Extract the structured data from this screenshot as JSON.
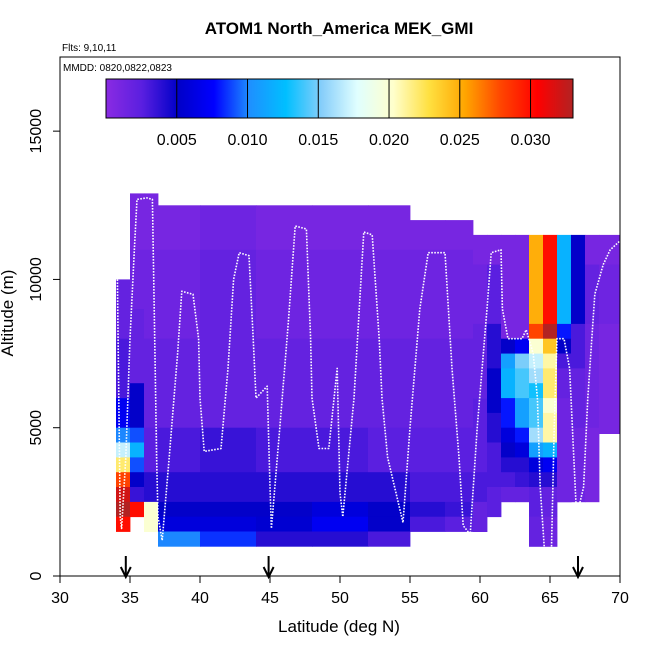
{
  "chart_data": {
    "type": "heatmap",
    "title": "ATOM1 North_America MEK_GMI",
    "flights_label": "Flts: 9,10,11",
    "dates_label": "MMDD: 0820,0822,0823",
    "xlabel": "Latitude (deg N)",
    "ylabel": "Altitude (m)",
    "xlim": [
      30,
      70
    ],
    "ylim": [
      0,
      17500
    ],
    "x_ticks": [
      "30",
      "35",
      "40",
      "45",
      "50",
      "55",
      "60",
      "65",
      "70"
    ],
    "y_ticks": [
      "0",
      "5000",
      "10000",
      "15000"
    ],
    "colorbar": {
      "min": 0.0,
      "max": 0.033,
      "tick_values": [
        0.005,
        0.01,
        0.015,
        0.02,
        0.025,
        0.03
      ],
      "tick_labels": [
        "0.005",
        "0.010",
        "0.015",
        "0.020",
        "0.025",
        "0.030"
      ],
      "colors": [
        "#8a2be2",
        "#5a1fe0",
        "#0000c8",
        "#0000ff",
        "#1e90ff",
        "#00bfff",
        "#87cefa",
        "#e0ffff",
        "#ffffcc",
        "#ffe040",
        "#ffa500",
        "#ff4500",
        "#ff0000",
        "#b22222"
      ]
    },
    "columns": [
      {
        "x0": 34.0,
        "x1": 35.0,
        "top": 10000,
        "bottom": 1500,
        "cells": [
          [
            8000,
            0.002
          ],
          [
            6000,
            0.003
          ],
          [
            5000,
            0.007
          ],
          [
            4500,
            0.01
          ],
          [
            4000,
            0.017
          ],
          [
            3500,
            0.022
          ],
          [
            3000,
            0.028
          ],
          [
            2500,
            0.032
          ],
          [
            2000,
            0.033
          ],
          [
            1500,
            0.03
          ]
        ]
      },
      {
        "x0": 35.0,
        "x1": 36.0,
        "top": 12900,
        "bottom": 1500,
        "cells": [
          [
            11000,
            0.001
          ],
          [
            9000,
            0.0015
          ],
          [
            6500,
            0.002
          ],
          [
            5000,
            0.005
          ],
          [
            4500,
            0.009
          ],
          [
            4000,
            0.012
          ],
          [
            3500,
            0.009
          ],
          [
            3000,
            0.005
          ],
          [
            2500,
            0.0035
          ],
          [
            2000,
            0.03
          ]
        ]
      },
      {
        "x0": 36.0,
        "x1": 37.0,
        "top": 12900,
        "bottom": 1500,
        "cells": [
          [
            11000,
            0.001
          ],
          [
            8000,
            0.0015
          ],
          [
            5000,
            0.002
          ],
          [
            3500,
            0.0025
          ],
          [
            2500,
            0.004
          ],
          [
            1500,
            0.02
          ]
        ]
      },
      {
        "x0": 37.0,
        "x1": 40.0,
        "top": 12500,
        "bottom": 1000,
        "cells": [
          [
            11000,
            0.001
          ],
          [
            8000,
            0.0015
          ],
          [
            5000,
            0.002
          ],
          [
            3500,
            0.003
          ],
          [
            2500,
            0.004
          ],
          [
            2000,
            0.005
          ],
          [
            1500,
            0.006
          ],
          [
            1000,
            0.01
          ]
        ]
      },
      {
        "x0": 40.0,
        "x1": 44.0,
        "top": 12500,
        "bottom": 1000,
        "cells": [
          [
            11000,
            0.0015
          ],
          [
            8000,
            0.002
          ],
          [
            5000,
            0.002
          ],
          [
            3500,
            0.0035
          ],
          [
            2500,
            0.004
          ],
          [
            2000,
            0.005
          ],
          [
            1500,
            0.006
          ],
          [
            1000,
            0.0085
          ]
        ]
      },
      {
        "x0": 44.0,
        "x1": 48.0,
        "top": 12500,
        "bottom": 1000,
        "cells": [
          [
            11000,
            0.001
          ],
          [
            8000,
            0.0015
          ],
          [
            5000,
            0.002
          ],
          [
            3500,
            0.003
          ],
          [
            2500,
            0.004
          ],
          [
            2000,
            0.005
          ],
          [
            1500,
            0.0055
          ],
          [
            1000,
            0.004
          ]
        ]
      },
      {
        "x0": 48.0,
        "x1": 52.0,
        "top": 12500,
        "bottom": 1000,
        "cells": [
          [
            11000,
            0.001
          ],
          [
            8000,
            0.0015
          ],
          [
            5000,
            0.002
          ],
          [
            3500,
            0.003
          ],
          [
            2500,
            0.004
          ],
          [
            2000,
            0.006
          ],
          [
            1500,
            0.007
          ],
          [
            1000,
            0.004
          ]
        ]
      },
      {
        "x0": 52.0,
        "x1": 55.0,
        "top": 12500,
        "bottom": 1000,
        "cells": [
          [
            11000,
            0.001
          ],
          [
            8000,
            0.0015
          ],
          [
            5000,
            0.002
          ],
          [
            3500,
            0.0025
          ],
          [
            2500,
            0.004
          ],
          [
            2000,
            0.005
          ],
          [
            1500,
            0.005
          ],
          [
            1000,
            0.003
          ]
        ]
      },
      {
        "x0": 55.0,
        "x1": 57.5,
        "top": 12000,
        "bottom": 1500,
        "cells": [
          [
            11000,
            0.001
          ],
          [
            8000,
            0.0015
          ],
          [
            5000,
            0.002
          ],
          [
            3500,
            0.0025
          ],
          [
            2500,
            0.003
          ],
          [
            2000,
            0.004
          ],
          [
            1500,
            0.003
          ]
        ]
      },
      {
        "x0": 57.5,
        "x1": 59.5,
        "top": 12000,
        "bottom": 1500,
        "cells": [
          [
            11000,
            0.001
          ],
          [
            8000,
            0.0015
          ],
          [
            5000,
            0.002
          ],
          [
            3500,
            0.0025
          ],
          [
            2500,
            0.003
          ],
          [
            2000,
            0.0035
          ],
          [
            1500,
            0.0025
          ]
        ]
      },
      {
        "x0": 59.5,
        "x1": 60.5,
        "top": 11500,
        "bottom": 1500,
        "cells": [
          [
            10500,
            0.001
          ],
          [
            8500,
            0.0015
          ],
          [
            6000,
            0.002
          ],
          [
            3500,
            0.0025
          ],
          [
            2500,
            0.003
          ],
          [
            1500,
            0.002
          ]
        ]
      },
      {
        "x0": 60.5,
        "x1": 61.5,
        "top": 11500,
        "bottom": 1500,
        "cells": [
          [
            10500,
            0.001
          ],
          [
            8500,
            0.0025
          ],
          [
            7000,
            0.004
          ],
          [
            5500,
            0.005
          ],
          [
            4500,
            0.004
          ],
          [
            3000,
            0.003
          ],
          [
            2000,
            0.0025
          ]
        ]
      },
      {
        "x0": 61.5,
        "x1": 62.5,
        "top": 11500,
        "bottom": 1500,
        "cells": [
          [
            8000,
            0.001
          ],
          [
            7500,
            0.005
          ],
          [
            7000,
            0.011
          ],
          [
            6000,
            0.012
          ],
          [
            5000,
            0.008
          ],
          [
            4500,
            0.006
          ],
          [
            4000,
            0.005
          ],
          [
            3500,
            0.004
          ],
          [
            3000,
            0.003
          ],
          [
            2500,
            0.002
          ]
        ]
      },
      {
        "x0": 62.5,
        "x1": 63.5,
        "top": 11500,
        "bottom": 1500,
        "cells": [
          [
            8000,
            0.001
          ],
          [
            7500,
            0.007
          ],
          [
            7000,
            0.015
          ],
          [
            6000,
            0.014
          ],
          [
            5000,
            0.011
          ],
          [
            4500,
            0.008
          ],
          [
            4000,
            0.006
          ],
          [
            3500,
            0.004
          ],
          [
            3000,
            0.0035
          ],
          [
            2500,
            0.002
          ]
        ]
      },
      {
        "x0": 63.5,
        "x1": 64.5,
        "top": 11500,
        "bottom": 500,
        "cells": [
          [
            8500,
            0.025
          ],
          [
            8000,
            0.028
          ],
          [
            7500,
            0.02
          ],
          [
            7000,
            0.017
          ],
          [
            6500,
            0.016
          ],
          [
            6000,
            0.013
          ],
          [
            5000,
            0.014
          ],
          [
            4500,
            0.016
          ],
          [
            4000,
            0.011
          ],
          [
            3500,
            0.006
          ],
          [
            3000,
            0.004
          ],
          [
            2000,
            0.0025
          ],
          [
            1000,
            0.002
          ]
        ]
      },
      {
        "x0": 64.5,
        "x1": 65.5,
        "top": 11500,
        "bottom": 500,
        "cells": [
          [
            8500,
            0.03
          ],
          [
            8000,
            0.033
          ],
          [
            7500,
            0.024
          ],
          [
            7000,
            0.021
          ],
          [
            6000,
            0.022
          ],
          [
            5500,
            0.02
          ],
          [
            4500,
            0.021
          ],
          [
            4000,
            0.012
          ],
          [
            3500,
            0.007
          ],
          [
            3000,
            0.004
          ],
          [
            2000,
            0.002
          ],
          [
            1000,
            0.0015
          ]
        ]
      },
      {
        "x0": 65.5,
        "x1": 66.5,
        "top": 11500,
        "bottom": 1500,
        "cells": [
          [
            8500,
            0.012
          ],
          [
            8000,
            0.008
          ],
          [
            7500,
            0.005
          ],
          [
            7000,
            0.003
          ],
          [
            6000,
            0.002
          ],
          [
            4000,
            0.0015
          ],
          [
            2500,
            0.0015
          ]
        ]
      },
      {
        "x0": 66.5,
        "x1": 67.5,
        "top": 11500,
        "bottom": 1500,
        "cells": [
          [
            8500,
            0.005
          ],
          [
            7000,
            0.003
          ],
          [
            5000,
            0.002
          ],
          [
            2500,
            0.0015
          ]
        ]
      },
      {
        "x0": 67.5,
        "x1": 68.5,
        "top": 11500,
        "bottom": 2500,
        "cells": [
          [
            10500,
            0.001
          ],
          [
            8500,
            0.002
          ],
          [
            5000,
            0.0015
          ],
          [
            2500,
            0.001
          ]
        ]
      },
      {
        "x0": 68.5,
        "x1": 70.0,
        "top": 11500,
        "bottom": 4800,
        "cells": [
          [
            10500,
            0.001
          ],
          [
            8500,
            0.0015
          ],
          [
            4800,
            0.001
          ]
        ]
      }
    ],
    "flight_track": [
      [
        34.1,
        10000
      ],
      [
        34.2,
        6000
      ],
      [
        34.3,
        2000
      ],
      [
        34.4,
        1600
      ],
      [
        34.7,
        4000
      ],
      [
        35.0,
        8000
      ],
      [
        35.3,
        10900
      ],
      [
        35.5,
        12700
      ],
      [
        36.2,
        12750
      ],
      [
        36.6,
        12700
      ],
      [
        36.8,
        7000
      ],
      [
        36.9,
        4000
      ],
      [
        37.0,
        2000
      ],
      [
        37.3,
        1200
      ],
      [
        37.8,
        4000
      ],
      [
        38.4,
        7500
      ],
      [
        38.7,
        9600
      ],
      [
        39.5,
        9500
      ],
      [
        39.9,
        8000
      ],
      [
        40.0,
        6000
      ],
      [
        40.3,
        4200
      ],
      [
        41.5,
        4300
      ],
      [
        42.0,
        7000
      ],
      [
        42.4,
        10000
      ],
      [
        42.8,
        10900
      ],
      [
        43.5,
        10800
      ],
      [
        43.8,
        8000
      ],
      [
        44.0,
        6000
      ],
      [
        44.8,
        6400
      ],
      [
        45.0,
        3000
      ],
      [
        45.1,
        1600
      ],
      [
        45.7,
        5000
      ],
      [
        46.3,
        8500
      ],
      [
        46.8,
        11800
      ],
      [
        47.6,
        11700
      ],
      [
        47.9,
        8000
      ],
      [
        48.0,
        6000
      ],
      [
        48.5,
        4300
      ],
      [
        49.2,
        4300
      ],
      [
        49.8,
        7000
      ],
      [
        50.0,
        2800
      ],
      [
        50.2,
        2000
      ],
      [
        51.0,
        6000
      ],
      [
        51.7,
        11600
      ],
      [
        52.3,
        11500
      ],
      [
        52.8,
        8000
      ],
      [
        53.0,
        6000
      ],
      [
        53.4,
        4000
      ],
      [
        54.5,
        1800
      ],
      [
        55.0,
        5000
      ],
      [
        55.7,
        9000
      ],
      [
        56.3,
        10900
      ],
      [
        57.5,
        10900
      ],
      [
        58.0,
        7000
      ],
      [
        58.5,
        4000
      ],
      [
        58.8,
        1700
      ],
      [
        59.3,
        1400
      ],
      [
        59.8,
        5000
      ],
      [
        60.5,
        9000
      ],
      [
        60.8,
        10900
      ],
      [
        61.5,
        11000
      ],
      [
        61.6,
        9000
      ],
      [
        62.0,
        8000
      ],
      [
        63.0,
        8000
      ],
      [
        63.3,
        8300
      ],
      [
        63.8,
        7500
      ],
      [
        64.1,
        6000
      ],
      [
        64.3,
        3000
      ],
      [
        64.6,
        900
      ],
      [
        65.1,
        800
      ],
      [
        65.3,
        5000
      ],
      [
        65.5,
        8000
      ],
      [
        66.0,
        8000
      ],
      [
        66.4,
        7000
      ],
      [
        66.7,
        4000
      ],
      [
        66.9,
        2000
      ],
      [
        67.4,
        3000
      ],
      [
        67.7,
        6000
      ],
      [
        68.2,
        9500
      ],
      [
        68.8,
        10500
      ],
      [
        69.3,
        11000
      ],
      [
        70.0,
        11300
      ]
    ],
    "arrows_x": [
      34.7,
      44.9,
      67.0
    ]
  }
}
